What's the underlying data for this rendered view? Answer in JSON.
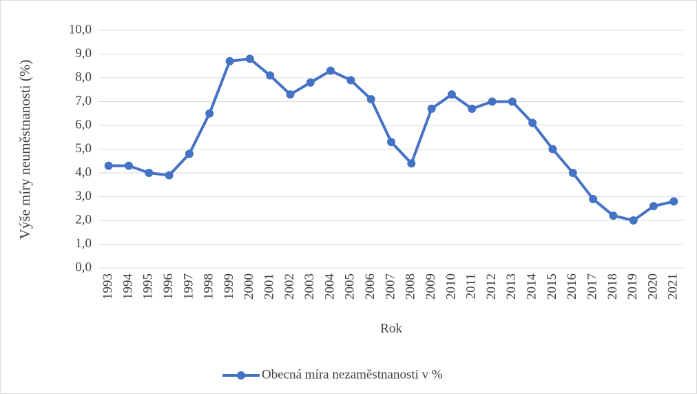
{
  "chart_data": {
    "type": "line",
    "x_label": "Rok",
    "y_label": "Výše míry neuměstnanosti (%)",
    "categories": [
      "1993",
      "1994",
      "1995",
      "1996",
      "1997",
      "1998",
      "1999",
      "2000",
      "2001",
      "2002",
      "2003",
      "2004",
      "2005",
      "2006",
      "2007",
      "2008",
      "2009",
      "2010",
      "2011",
      "2012",
      "2013",
      "2014",
      "2015",
      "2016",
      "2017",
      "2018",
      "2019",
      "2020",
      "2021"
    ],
    "series": [
      {
        "name": "Obecná míra nezaměstnanosti v %",
        "color": "#4472c4",
        "values": [
          4.3,
          4.3,
          4.0,
          3.9,
          4.8,
          6.5,
          8.7,
          8.8,
          8.1,
          7.3,
          7.8,
          8.3,
          7.9,
          7.1,
          5.3,
          4.4,
          6.7,
          7.3,
          6.7,
          7.0,
          7.0,
          6.1,
          5.0,
          4.0,
          2.9,
          2.2,
          2.0,
          2.6,
          2.8
        ]
      }
    ],
    "ylim": [
      0,
      10
    ],
    "yticks": [
      {
        "value": 0,
        "label": "0,0"
      },
      {
        "value": 1,
        "label": "1,0"
      },
      {
        "value": 2,
        "label": "2,0"
      },
      {
        "value": 3,
        "label": "3,0"
      },
      {
        "value": 4,
        "label": "4,0"
      },
      {
        "value": 5,
        "label": "5,0"
      },
      {
        "value": 6,
        "label": "6,0"
      },
      {
        "value": 7,
        "label": "7,0"
      },
      {
        "value": 8,
        "label": "8,0"
      },
      {
        "value": 9,
        "label": "9,0"
      },
      {
        "value": 10,
        "label": "10,0"
      }
    ],
    "grid": true,
    "legend": "bottom"
  }
}
